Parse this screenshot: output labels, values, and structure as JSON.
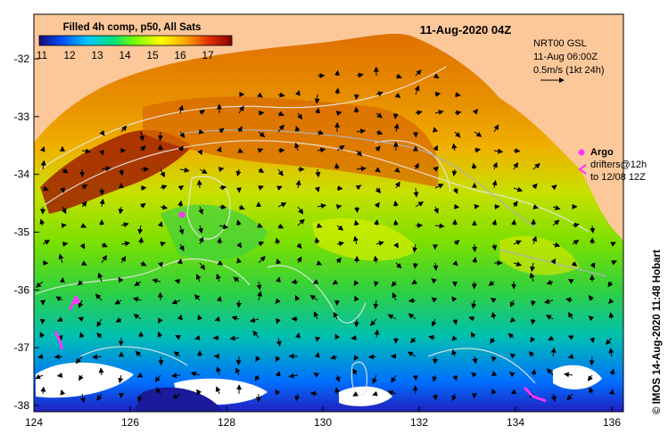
{
  "header": {
    "colorbar_title": "Filled 4h comp, p50, All Sats",
    "date_title": "11-Aug-2020 04Z"
  },
  "colorbar": {
    "ticks": [
      "11",
      "12",
      "13",
      "14",
      "15",
      "16",
      "17"
    ],
    "stops": [
      "#1a0a7a",
      "#0050ff",
      "#00c8ff",
      "#00e080",
      "#7cff00",
      "#ffff00",
      "#ffa500",
      "#e03000",
      "#8a0000"
    ]
  },
  "current_legend": {
    "line1": "NRT00 GSL",
    "line2": "11-Aug 06:00Z",
    "line3": "0.5m/s (1kt 24h)"
  },
  "argo_legend": {
    "argo_label": "Argo",
    "drifters_line1": "drifters@12h",
    "drifters_line2": "to 12/08 12Z"
  },
  "credit": "© IMOS 14-Aug-2020 11:48 Hobart",
  "axes": {
    "x_ticks": [
      "124",
      "126",
      "128",
      "130",
      "132",
      "134",
      "136"
    ],
    "y_ticks": [
      "-32",
      "-33",
      "-34",
      "-35",
      "-36",
      "-37",
      "-38"
    ]
  },
  "colors": {
    "land": "#fcc89a",
    "marker": "#ff33ff",
    "axis": "#000000"
  }
}
